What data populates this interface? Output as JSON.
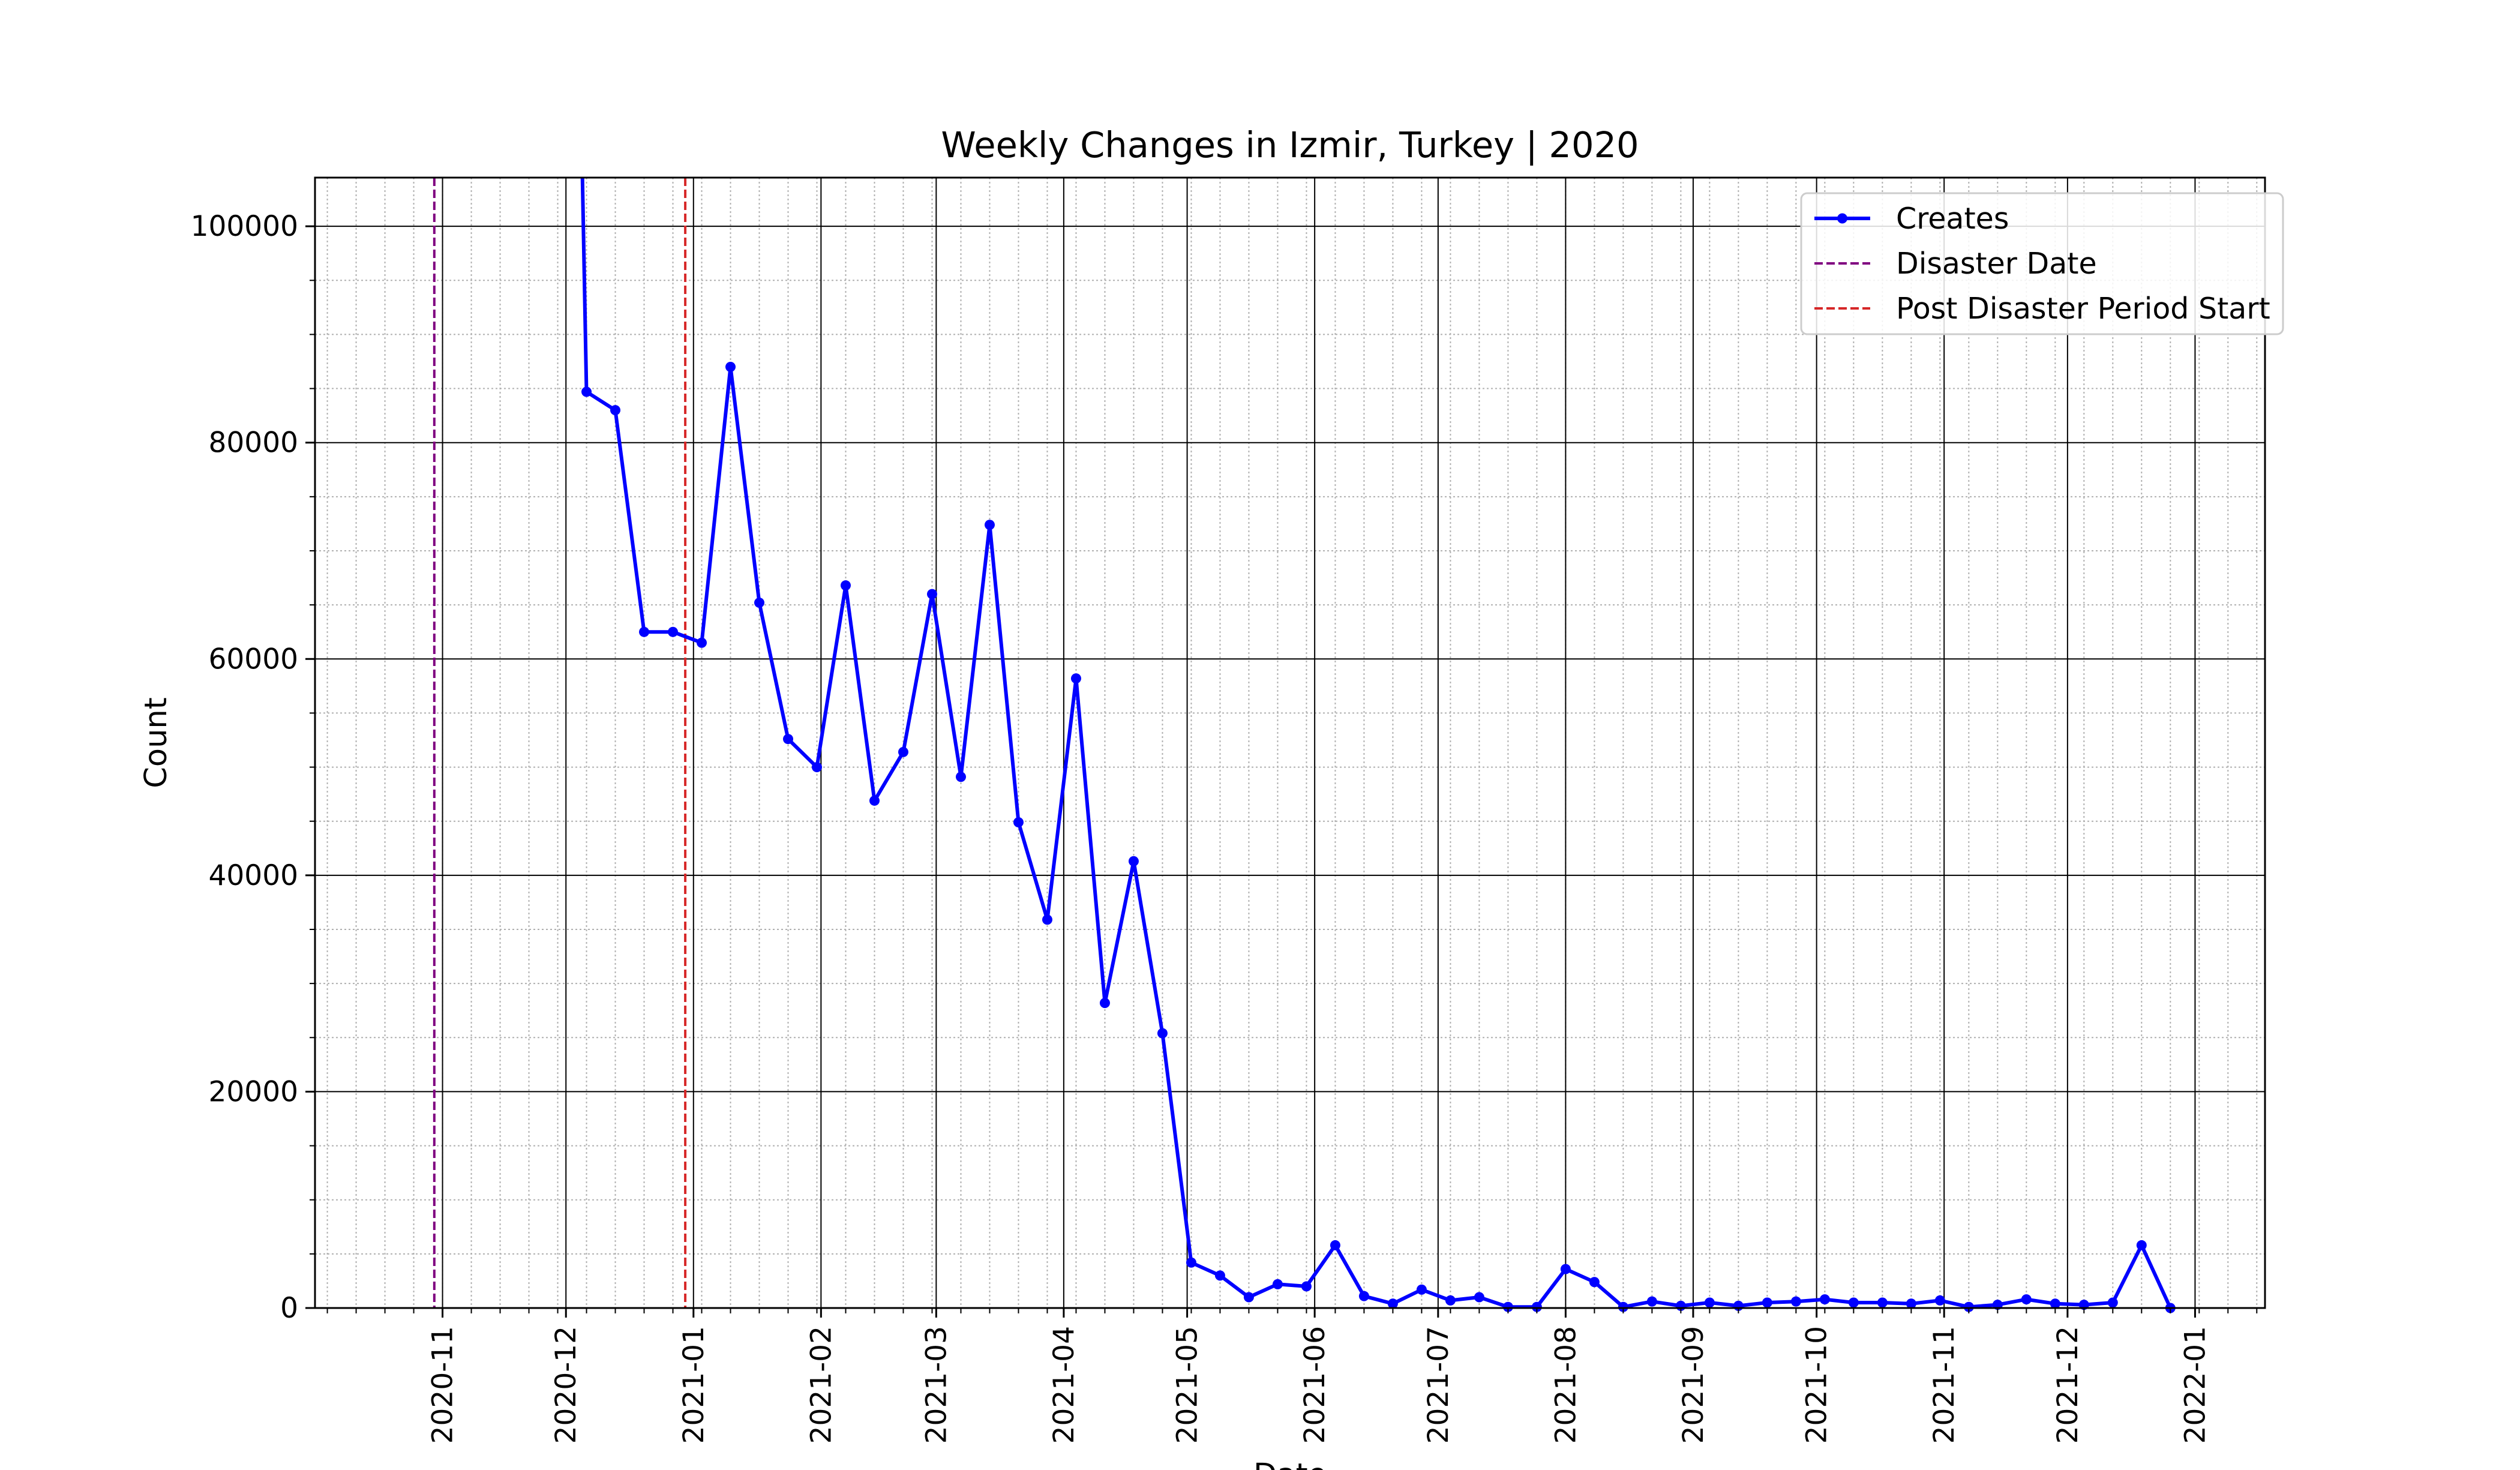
{
  "chart_data": {
    "type": "line",
    "title": "Weekly Changes in Izmir, Turkey | 2020",
    "xlabel": "Date",
    "ylabel": "Count",
    "x_axis_kind": "date",
    "xlim": [
      "2020-10-01",
      "2022-01-18"
    ],
    "ylim": [
      0,
      104500
    ],
    "x_ticks": [
      "2020-11-01",
      "2020-12-01",
      "2021-01-01",
      "2021-02-01",
      "2021-03-01",
      "2021-04-01",
      "2021-05-01",
      "2021-06-01",
      "2021-07-01",
      "2021-08-01",
      "2021-09-01",
      "2021-10-01",
      "2021-11-01",
      "2021-12-01",
      "2022-01-01"
    ],
    "x_tick_labels": [
      "2020-11",
      "2020-12",
      "2021-01",
      "2021-02",
      "2021-03",
      "2021-04",
      "2021-05",
      "2021-06",
      "2021-07",
      "2021-08",
      "2021-09",
      "2021-10",
      "2021-11",
      "2021-12",
      "2022-01"
    ],
    "y_ticks": [
      0,
      20000,
      40000,
      60000,
      80000,
      100000
    ],
    "y_tick_labels": [
      "0",
      "20000",
      "40000",
      "60000",
      "80000",
      "100000"
    ],
    "grid": {
      "major": true,
      "minor": true
    },
    "legend": {
      "position": "top-right",
      "entries": [
        {
          "label": "Creates",
          "style": "line-marker",
          "color": "#0000ff"
        },
        {
          "label": "Disaster Date",
          "style": "dashed",
          "color": "#800080"
        },
        {
          "label": "Post Disaster Period Start",
          "style": "dashed",
          "color": "#d62728"
        }
      ]
    },
    "vlines": [
      {
        "label": "Disaster Date",
        "date": "2020-10-30",
        "color": "#800080"
      },
      {
        "label": "Post Disaster Period Start",
        "date": "2020-12-30",
        "color": "#d62728"
      }
    ],
    "series": [
      {
        "name": "Creates",
        "color": "#0000ff",
        "x": [
          "2020-12-06",
          "2020-12-13",
          "2020-12-20",
          "2020-12-27",
          "2021-01-03",
          "2021-01-10",
          "2021-01-17",
          "2021-01-24",
          "2021-01-31",
          "2021-02-07",
          "2021-02-14",
          "2021-02-21",
          "2021-02-28",
          "2021-03-07",
          "2021-03-14",
          "2021-03-21",
          "2021-03-28",
          "2021-04-04",
          "2021-04-11",
          "2021-04-18",
          "2021-04-25",
          "2021-05-02",
          "2021-05-09",
          "2021-05-16",
          "2021-05-23",
          "2021-05-30",
          "2021-06-06",
          "2021-06-13",
          "2021-06-20",
          "2021-06-27",
          "2021-07-04",
          "2021-07-11",
          "2021-07-18",
          "2021-07-25",
          "2021-08-01",
          "2021-08-08",
          "2021-08-15",
          "2021-08-22",
          "2021-08-29",
          "2021-09-05",
          "2021-09-12",
          "2021-09-19",
          "2021-09-26",
          "2021-10-03",
          "2021-10-10",
          "2021-10-17",
          "2021-10-24",
          "2021-10-31",
          "2021-11-07",
          "2021-11-14",
          "2021-11-21",
          "2021-11-28",
          "2021-12-05",
          "2021-12-12",
          "2021-12-19",
          "2021-12-26"
        ],
        "values": [
          84700,
          83000,
          62500,
          62500,
          61500,
          87000,
          65200,
          52600,
          50000,
          66800,
          46900,
          51400,
          66000,
          49100,
          72400,
          44900,
          35900,
          58200,
          28200,
          41300,
          25400,
          4200,
          3000,
          1000,
          2200,
          2000,
          5800,
          1100,
          400,
          1700,
          700,
          1000,
          100,
          100,
          3600,
          2400,
          100,
          600,
          200,
          500,
          200,
          500,
          600,
          800,
          500,
          500,
          400,
          700,
          100,
          300,
          800,
          400,
          300,
          500,
          5800,
          0
        ],
        "line_from": {
          "x": "2020-12-05",
          "value": 104500
        }
      }
    ]
  }
}
